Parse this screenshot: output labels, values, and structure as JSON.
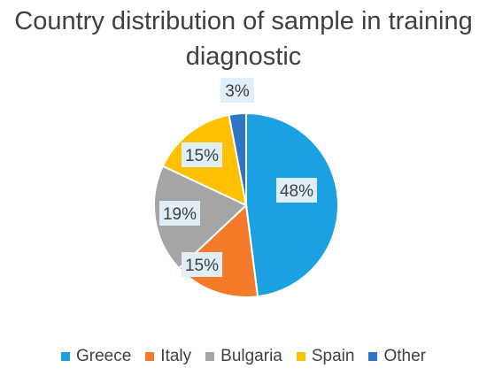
{
  "chart_data": {
    "type": "pie",
    "title": "Country distribution of sample in training diagnostic",
    "categories": [
      "Greece",
      "Italy",
      "Bulgaria",
      "Spain",
      "Other"
    ],
    "values": [
      48,
      15,
      19,
      15,
      3
    ],
    "data_labels": [
      "48%",
      "15%",
      "19%",
      "15%",
      "3%"
    ],
    "colors": [
      "#1ba1e2",
      "#f47b2a",
      "#a5a5a5",
      "#ffc000",
      "#2e75c6"
    ],
    "start_angle_deg": 0,
    "direction": "clockwise",
    "legend": "bottom"
  }
}
